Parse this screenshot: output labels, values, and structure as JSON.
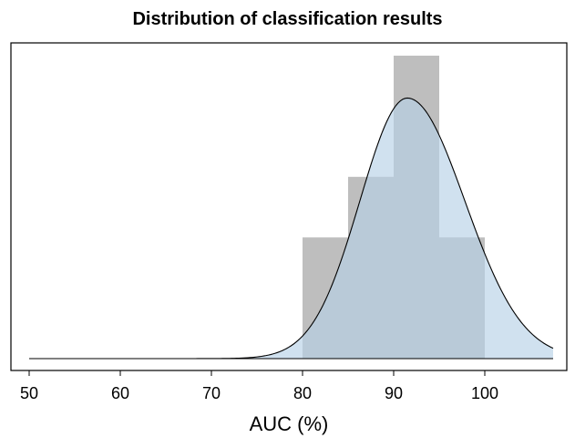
{
  "chart_data": {
    "type": "histogram",
    "title": "Distribution of classification results",
    "xlabel": "AUC (%)",
    "ylabel": "",
    "xlim": [
      48,
      109
    ],
    "x_ticks": [
      50,
      60,
      70,
      80,
      90,
      100
    ],
    "x_tick_labels": [
      "50",
      "60",
      "70",
      "80",
      "90",
      "100"
    ],
    "histogram": {
      "bin_edges": [
        80,
        85,
        90,
        95,
        100
      ],
      "counts": [
        2,
        3,
        5,
        2
      ],
      "color": "#bebebe"
    },
    "density": {
      "x_range": [
        50,
        107.5
      ],
      "peak_x": 91.5,
      "peak_relative_height": 0.86,
      "fill_color": "#b7d1e6",
      "line_color": "#000000"
    },
    "grid": false,
    "legend": "none"
  }
}
